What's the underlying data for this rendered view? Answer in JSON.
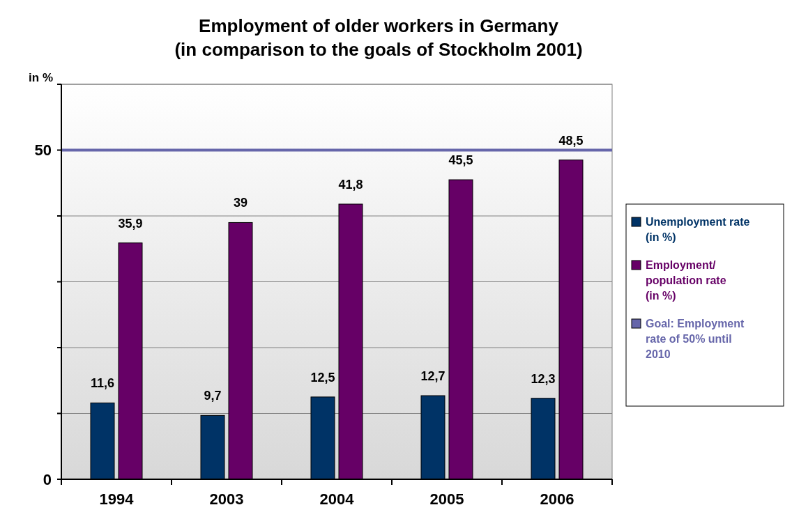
{
  "chart_data": {
    "type": "bar",
    "title": "Employment of older workers in Germany\n(in comparison to the goals of Stockholm 2001)",
    "ylabel": "in %",
    "categories": [
      "1994",
      "2003",
      "2004",
      "2005",
      "2006"
    ],
    "series": [
      {
        "name": "Unemployment rate (in %)",
        "color": "#003366",
        "values": [
          11.6,
          9.7,
          12.5,
          12.7,
          12.3
        ],
        "value_labels": [
          "11,6",
          "9,7",
          "12,5",
          "12,7",
          "12,3"
        ]
      },
      {
        "name": "Employment/ population rate (in %)",
        "color": "#660066",
        "values": [
          35.9,
          39,
          41.8,
          45.5,
          48.5
        ],
        "value_labels": [
          "35,9",
          "39",
          "41,8",
          "45,5",
          "48,5"
        ]
      }
    ],
    "ylim": [
      0,
      60
    ],
    "yticks": [
      0,
      {
        "value": 10,
        "label": null
      },
      {
        "value": 20,
        "label": null
      },
      {
        "value": 30,
        "label": null
      },
      {
        "value": 40,
        "label": null
      },
      50,
      {
        "value": 60,
        "label": null
      }
    ],
    "grid": "y",
    "legend": "right",
    "ref_lines": [
      {
        "axis": "y",
        "value": 50,
        "label": "Goal: Employment rate of 50% until 2010",
        "color": "#6666aa"
      }
    ]
  }
}
